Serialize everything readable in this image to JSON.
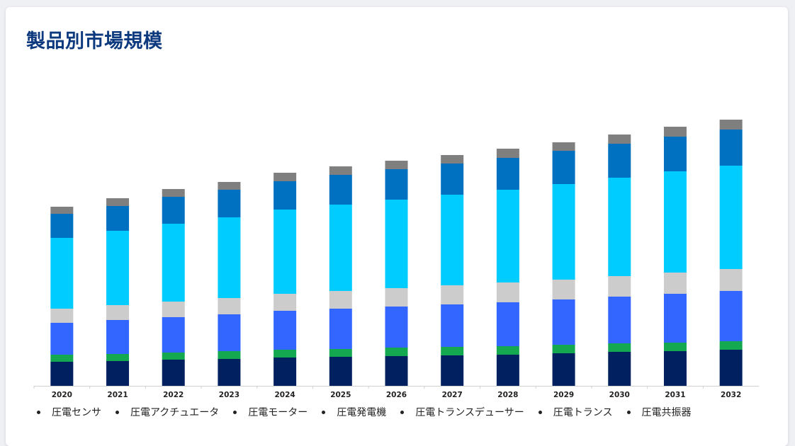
{
  "page_title": "製品別市場規模",
  "chart_data": {
    "type": "bar",
    "stacked": true,
    "categories": [
      "2020",
      "2021",
      "2022",
      "2023",
      "2024",
      "2025",
      "2026",
      "2027",
      "2028",
      "2029",
      "2030",
      "2031",
      "2032"
    ],
    "series": [
      {
        "name": "圧電センサ",
        "color": "#002060",
        "values": [
          34,
          35,
          37,
          38,
          40,
          41,
          42,
          43,
          44,
          46,
          48,
          49,
          51
        ]
      },
      {
        "name": "圧電アクチュエータ",
        "color": "#14a850",
        "values": [
          10,
          10,
          10,
          11,
          11,
          11,
          12,
          12,
          12,
          12,
          12,
          12,
          12
        ]
      },
      {
        "name": "圧電モーター",
        "color": "#3366ff",
        "values": [
          45,
          48,
          50,
          52,
          55,
          57,
          58,
          60,
          62,
          64,
          66,
          69,
          71
        ]
      },
      {
        "name": "圧電発電機",
        "color": "#cccccc",
        "values": [
          20,
          21,
          22,
          23,
          24,
          25,
          26,
          27,
          28,
          28,
          29,
          30,
          31
        ]
      },
      {
        "name": "圧電トランスデューサー",
        "color": "#00ccff",
        "values": [
          100,
          105,
          110,
          114,
          119,
          122,
          125,
          128,
          131,
          135,
          139,
          143,
          146
        ]
      },
      {
        "name": "圧電トランス",
        "color": "#0070c0",
        "values": [
          34,
          35,
          38,
          39,
          40,
          42,
          43,
          44,
          45,
          47,
          48,
          49,
          51
        ]
      },
      {
        "name": "圧電共振器",
        "color": "#7f7f7f",
        "values": [
          10,
          11,
          11,
          11,
          12,
          12,
          12,
          12,
          13,
          12,
          13,
          14,
          14
        ]
      }
    ],
    "ylim": [
      0,
      380
    ],
    "grid": false,
    "legend_position": "bottom"
  }
}
